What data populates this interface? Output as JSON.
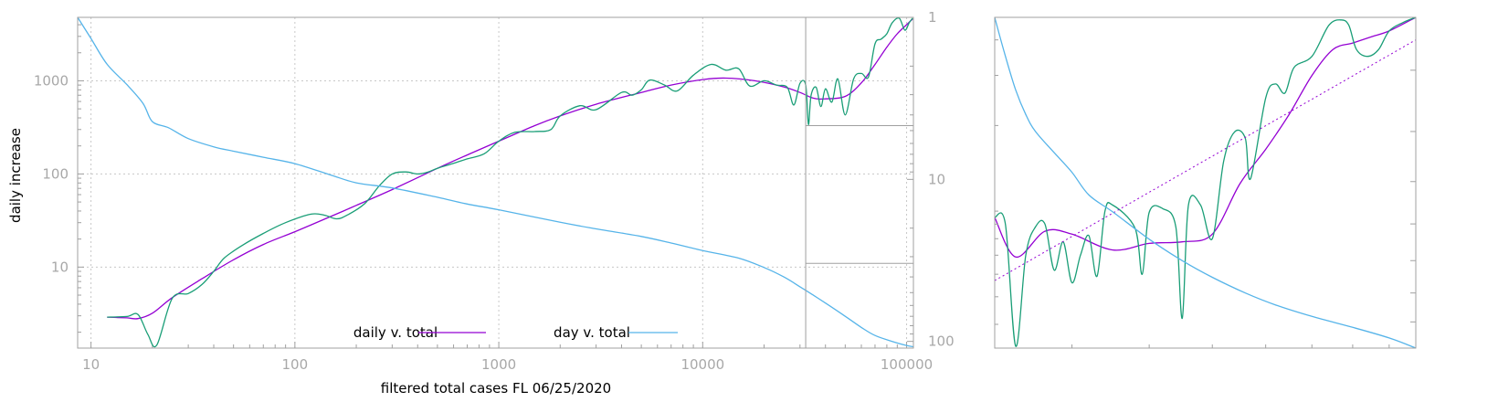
{
  "chart_data": [
    {
      "type": "line",
      "title": "",
      "xlabel": "filtered total cases FL 06/25/2020",
      "ylabel": "daily increase",
      "xscale": "log",
      "yscale": "log",
      "xlim": [
        8.6,
        108000
      ],
      "ylim": [
        1.35,
        4800
      ],
      "y2lim_reversed": [
        1,
        110
      ],
      "y2scale": "log",
      "grid": true,
      "legend_position": "bottom-center",
      "x_ticks": [
        "10",
        "100",
        "1000",
        "10000",
        "100000"
      ],
      "y_ticks": [
        "10",
        "100",
        "1000"
      ],
      "y2_ticks": [
        "1",
        "10",
        "100"
      ],
      "colors": {
        "daily_raw": "#1a9e77",
        "daily_fit": "#9400d3",
        "day_v_total": "#56b4e9",
        "frame": "#a0a0a0",
        "grid": "#c8c8c8"
      },
      "series": [
        {
          "name": "daily v. total",
          "axis": "y",
          "style": "smoothed",
          "points": [
            [
              12,
              2.9
            ],
            [
              15,
              2.85
            ],
            [
              17,
              2.8
            ],
            [
              20,
              3.2
            ],
            [
              25,
              4.7
            ],
            [
              35,
              7.5
            ],
            [
              50,
              12
            ],
            [
              70,
              17.5
            ],
            [
              100,
              24
            ],
            [
              150,
              35
            ],
            [
              200,
              46
            ],
            [
              300,
              68
            ],
            [
              500,
              115
            ],
            [
              700,
              160
            ],
            [
              1000,
              225
            ],
            [
              1500,
              330
            ],
            [
              2000,
              420
            ],
            [
              3000,
              560
            ],
            [
              5000,
              750
            ],
            [
              7000,
              900
            ],
            [
              10000,
              1030
            ],
            [
              13000,
              1070
            ],
            [
              18000,
              1000
            ],
            [
              25000,
              860
            ],
            [
              30000,
              750
            ],
            [
              35000,
              650
            ],
            [
              40000,
              640
            ],
            [
              50000,
              680
            ],
            [
              60000,
              950
            ],
            [
              70000,
              1500
            ],
            [
              80000,
              2300
            ],
            [
              90000,
              3200
            ],
            [
              100000,
              4000
            ],
            [
              107000,
              4600
            ]
          ]
        },
        {
          "name": "",
          "axis": "y",
          "style": "raw",
          "points": [
            [
              12,
              2.9
            ],
            [
              15,
              2.95
            ],
            [
              17,
              3.1
            ],
            [
              19,
              1.9
            ],
            [
              21,
              1.45
            ],
            [
              25,
              4.6
            ],
            [
              30,
              5.2
            ],
            [
              35,
              6.5
            ],
            [
              40,
              9
            ],
            [
              45,
              12.5
            ],
            [
              55,
              17
            ],
            [
              70,
              23
            ],
            [
              90,
              30
            ],
            [
              120,
              37
            ],
            [
              140,
              36
            ],
            [
              160,
              33
            ],
            [
              180,
              36
            ],
            [
              220,
              48
            ],
            [
              260,
              75
            ],
            [
              300,
              100
            ],
            [
              350,
              105
            ],
            [
              400,
              100
            ],
            [
              450,
              105
            ],
            [
              500,
              115
            ],
            [
              600,
              130
            ],
            [
              700,
              145
            ],
            [
              850,
              165
            ],
            [
              1000,
              225
            ],
            [
              1200,
              280
            ],
            [
              1500,
              285
            ],
            [
              1800,
              300
            ],
            [
              2000,
              420
            ],
            [
              2500,
              540
            ],
            [
              3000,
              490
            ],
            [
              4000,
              750
            ],
            [
              4500,
              700
            ],
            [
              5000,
              800
            ],
            [
              5500,
              1020
            ],
            [
              6500,
              900
            ],
            [
              7500,
              780
            ],
            [
              9000,
              1150
            ],
            [
              11000,
              1500
            ],
            [
              13000,
              1300
            ],
            [
              15000,
              1350
            ],
            [
              17000,
              880
            ],
            [
              20000,
              1000
            ],
            [
              23000,
              900
            ],
            [
              26000,
              850
            ],
            [
              28000,
              550
            ],
            [
              30000,
              940
            ],
            [
              32000,
              900
            ],
            [
              33000,
              340
            ],
            [
              34000,
              700
            ],
            [
              36000,
              850
            ],
            [
              38000,
              530
            ],
            [
              40000,
              820
            ],
            [
              43000,
              590
            ],
            [
              46000,
              1050
            ],
            [
              50000,
              430
            ],
            [
              55000,
              1050
            ],
            [
              60000,
              1200
            ],
            [
              65000,
              1100
            ],
            [
              70000,
              2500
            ],
            [
              75000,
              2800
            ],
            [
              80000,
              3200
            ],
            [
              85000,
              4200
            ],
            [
              92000,
              4700
            ],
            [
              98000,
              3500
            ],
            [
              103000,
              4200
            ],
            [
              107000,
              4700
            ]
          ]
        },
        {
          "name": "day v. total",
          "axis": "y2",
          "style": "line",
          "points": [
            [
              8.6,
              1
            ],
            [
              10,
              1.35
            ],
            [
              12,
              1.95
            ],
            [
              15,
              2.6
            ],
            [
              18,
              3.4
            ],
            [
              20,
              4.4
            ],
            [
              24,
              4.8
            ],
            [
              30,
              5.6
            ],
            [
              40,
              6.3
            ],
            [
              50,
              6.7
            ],
            [
              70,
              7.3
            ],
            [
              100,
              8
            ],
            [
              150,
              9.4
            ],
            [
              200,
              10.5
            ],
            [
              300,
              11.3
            ],
            [
              500,
              12.9
            ],
            [
              700,
              14.2
            ],
            [
              1000,
              15.4
            ],
            [
              2000,
              18.4
            ],
            [
              3000,
              20.2
            ],
            [
              5000,
              22.5
            ],
            [
              7000,
              24.7
            ],
            [
              10000,
              27.5
            ],
            [
              15000,
              30.6
            ],
            [
              20000,
              35
            ],
            [
              25000,
              40
            ],
            [
              30000,
              46
            ],
            [
              35000,
              52
            ],
            [
              40000,
              58
            ],
            [
              50000,
              70
            ],
            [
              60000,
              82
            ],
            [
              70000,
              92
            ],
            [
              85000,
              100
            ],
            [
              100000,
              106
            ],
            [
              108000,
              108
            ]
          ]
        }
      ],
      "inset_box": {
        "x": [
          32000,
          108000
        ],
        "y": [
          330,
          4800
        ],
        "y2": [
          33,
          110
        ]
      }
    },
    {
      "type": "line",
      "title": "",
      "xlabel": "",
      "ylabel": "",
      "description_role": "zoom of inset region",
      "xlim": [
        32000,
        108000
      ],
      "ylim": [
        330,
        4800
      ],
      "y2lim_reversed": [
        33,
        110
      ],
      "series": [
        {
          "name": "",
          "style": "smoothed",
          "points": [
            [
              32000,
              950
            ],
            [
              34000,
              690
            ],
            [
              37000,
              850
            ],
            [
              40000,
              830
            ],
            [
              45000,
              730
            ],
            [
              50000,
              770
            ],
            [
              55000,
              780
            ],
            [
              60000,
              830
            ],
            [
              65000,
              1250
            ],
            [
              70000,
              1650
            ],
            [
              75000,
              2200
            ],
            [
              80000,
              3000
            ],
            [
              85000,
              3700
            ],
            [
              90000,
              3900
            ],
            [
              95000,
              4100
            ],
            [
              100000,
              4300
            ],
            [
              108000,
              4800
            ]
          ]
        },
        {
          "name": "",
          "style": "raw",
          "points": [
            [
              32000,
              950
            ],
            [
              33000,
              900
            ],
            [
              34000,
              335
            ],
            [
              35000,
              700
            ],
            [
              36000,
              880
            ],
            [
              37000,
              900
            ],
            [
              38000,
              620
            ],
            [
              39000,
              780
            ],
            [
              40000,
              560
            ],
            [
              41000,
              700
            ],
            [
              42000,
              820
            ],
            [
              43000,
              590
            ],
            [
              44000,
              1000
            ],
            [
              45000,
              1050
            ],
            [
              48000,
              870
            ],
            [
              49000,
              600
            ],
            [
              50000,
              990
            ],
            [
              52000,
              1020
            ],
            [
              54000,
              880
            ],
            [
              55000,
              420
            ],
            [
              56000,
              1050
            ],
            [
              58000,
              1050
            ],
            [
              60000,
              800
            ],
            [
              62000,
              1500
            ],
            [
              64000,
              1900
            ],
            [
              66000,
              1800
            ],
            [
              67000,
              1300
            ],
            [
              70000,
              2500
            ],
            [
              72000,
              2800
            ],
            [
              74000,
              2600
            ],
            [
              76000,
              3200
            ],
            [
              80000,
              3500
            ],
            [
              84000,
              4500
            ],
            [
              87000,
              4700
            ],
            [
              89000,
              4500
            ],
            [
              91000,
              3700
            ],
            [
              94000,
              3500
            ],
            [
              97000,
              3700
            ],
            [
              100000,
              4300
            ],
            [
              104000,
              4600
            ],
            [
              108000,
              4800
            ]
          ]
        },
        {
          "name": "",
          "style": "trend",
          "points": [
            [
              32000,
              570
            ],
            [
              108000,
              4000
            ]
          ]
        },
        {
          "name": "",
          "axis": "y2",
          "style": "line",
          "points": [
            [
              32000,
              33
            ],
            [
              33000,
              38
            ],
            [
              34000,
              43
            ],
            [
              35000,
              47
            ],
            [
              36000,
              50
            ],
            [
              38000,
              54
            ],
            [
              40000,
              58
            ],
            [
              42000,
              63
            ],
            [
              45000,
              67
            ],
            [
              50000,
              74
            ],
            [
              55000,
              80
            ],
            [
              60000,
              85
            ],
            [
              66000,
              90
            ],
            [
              72000,
              94
            ],
            [
              80000,
              98
            ],
            [
              90000,
              102
            ],
            [
              100000,
              106
            ],
            [
              108000,
              110
            ]
          ]
        }
      ]
    }
  ]
}
